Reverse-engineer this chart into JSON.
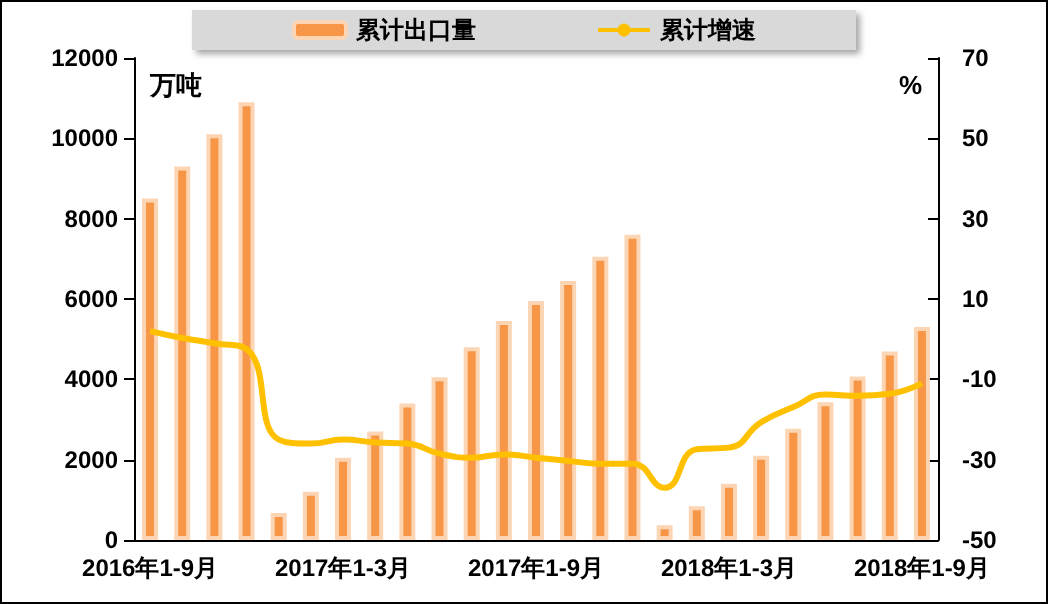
{
  "chart_data": {
    "type": "bar",
    "categories": [
      "2016年1-9月",
      null,
      null,
      null,
      null,
      null,
      "2017年1-3月",
      null,
      null,
      null,
      null,
      null,
      "2017年1-9月",
      null,
      null,
      null,
      null,
      null,
      "2018年1-3月",
      null,
      null,
      null,
      null,
      null,
      "2018年1-9月"
    ],
    "series": [
      {
        "name": "累计出口量",
        "color": "#f79646",
        "values": [
          8500,
          9300,
          10100,
          10900,
          670,
          1200,
          2050,
          2700,
          3400,
          4050,
          4800,
          5450,
          5950,
          6450,
          7050,
          7600,
          370,
          840,
          1400,
          2100,
          2770,
          3430,
          4070,
          4690,
          5300
        ]
      },
      {
        "name": "累计增速",
        "type": "line",
        "axis": "y2",
        "color": "#ffc000",
        "values": [
          2,
          0.3,
          -1,
          -2.5,
          -25,
          -26,
          -25,
          -25.7,
          -26,
          -28.5,
          -29.5,
          -28.7,
          -29.5,
          -30.3,
          -31,
          -31,
          -37,
          -27.4,
          -27,
          -20.7,
          -16.9,
          -13.8,
          -14.1,
          -13.6,
          -11
        ]
      }
    ],
    "ylabel": "万吨",
    "y2label": "%",
    "ylim": [
      0,
      12000
    ],
    "yticks": [
      0,
      2000,
      4000,
      6000,
      8000,
      10000,
      12000
    ],
    "y2lim": [
      -50,
      70
    ],
    "y2ticks": [
      -50,
      -30,
      -10,
      10,
      30,
      50,
      70
    ],
    "legend": "top",
    "marker": "none",
    "line_style": "solid"
  }
}
